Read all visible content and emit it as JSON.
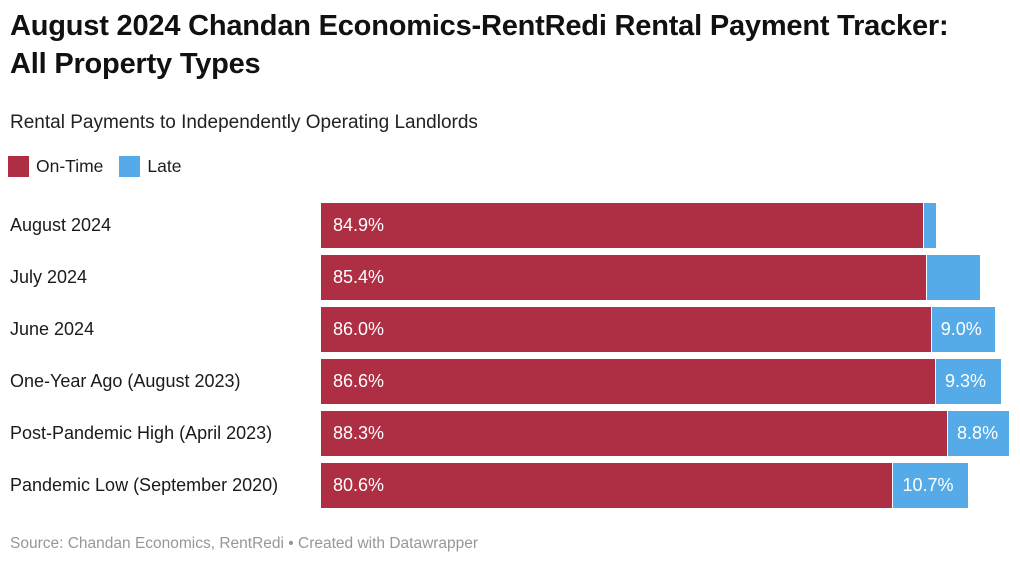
{
  "header": {
    "title": "August 2024 Chandan Economics-RentRedi Rental Payment Tracker: All Property Types",
    "subtitle": "Rental Payments to Independently Operating Landlords"
  },
  "chart_data": {
    "type": "bar",
    "orientation": "horizontal",
    "stacked": true,
    "title": "August 2024 Chandan Economics-RentRedi Rental Payment Tracker: All Property Types",
    "subtitle": "Rental Payments to Independently Operating Landlords",
    "categories": [
      "August 2024",
      "July 2024",
      "June 2024",
      "One-Year Ago (August 2023)",
      "Post-Pandemic High (April 2023)",
      "Pandemic Low (September 2020)"
    ],
    "series": [
      {
        "name": "On-Time",
        "color": "#ae2e44",
        "values": [
          84.9,
          85.4,
          86.0,
          86.6,
          88.3,
          80.6
        ],
        "labels": [
          "84.9%",
          "85.4%",
          "86.0%",
          "86.6%",
          "88.3%",
          "80.6%"
        ]
      },
      {
        "name": "Late",
        "color": "#55abe8",
        "values": [
          1.8,
          7.6,
          9.0,
          9.3,
          8.8,
          10.7
        ],
        "labels": [
          "",
          "",
          "9.0%",
          "9.3%",
          "8.8%",
          "10.7%"
        ]
      }
    ],
    "xlim": [
      0,
      100
    ],
    "grid": false,
    "legend_position": "top-left",
    "value_labels_inside_bars": true
  },
  "footer": {
    "text": "Source: Chandan Economics, RentRedi • Created with Datawrapper"
  }
}
